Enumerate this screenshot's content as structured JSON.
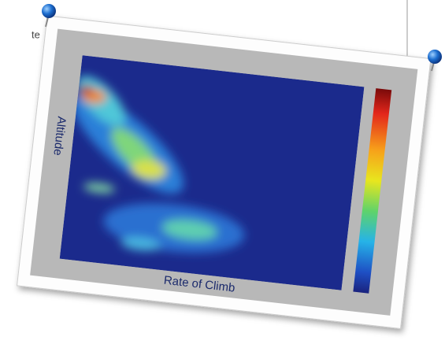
{
  "texts": {
    "cropped_text": "te",
    "y_label": "Altitude",
    "x_label": "Rate of Climb"
  }
}
